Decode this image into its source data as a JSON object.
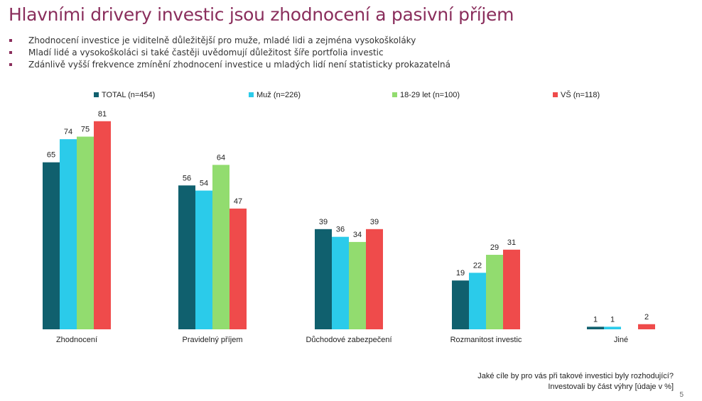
{
  "title": "Hlavními drivery investic jsou zhodnocení a pasivní příjem",
  "bullets": [
    "Zhodnocení investice je viditelně důležitější pro muže, mladé lidi a zejména vysokoškoláky",
    "Mladí lidé a vysokoškoláci si také častěji uvědomují důležitost šíře portfolia investic",
    "Zdánlivě vyšší frekvence zmínění zhodnocení investice u mladých lidí není statisticky prokazatelná"
  ],
  "footer": {
    "line1": "Jaké cíle by pro vás při takové investici byly rozhodující?",
    "line2": "Investovali by část výhry [údaje v %]"
  },
  "page_number": "5",
  "chart_data": {
    "type": "bar",
    "categories": [
      "Zhodnocení",
      "Pravidelný příjem",
      "Důchodové zabezpečení",
      "Rozmanitost investic",
      "Jiné"
    ],
    "series": [
      {
        "name": "TOTAL (n=454)",
        "color": "#10606e",
        "values": [
          65,
          56,
          39,
          19,
          1
        ]
      },
      {
        "name": "Muž (n=226)",
        "color": "#2bcbea",
        "values": [
          74,
          54,
          36,
          22,
          1
        ]
      },
      {
        "name": "18-29 let (n=100)",
        "color": "#92dc6f",
        "values": [
          75,
          64,
          34,
          29,
          null
        ]
      },
      {
        "name": "VŠ (n=118)",
        "color": "#ef4b4b",
        "values": [
          81,
          47,
          39,
          31,
          2
        ]
      }
    ],
    "ylim": [
      0,
      100
    ],
    "legend_position": "top",
    "grid": false,
    "xlabel": "",
    "ylabel": ""
  }
}
